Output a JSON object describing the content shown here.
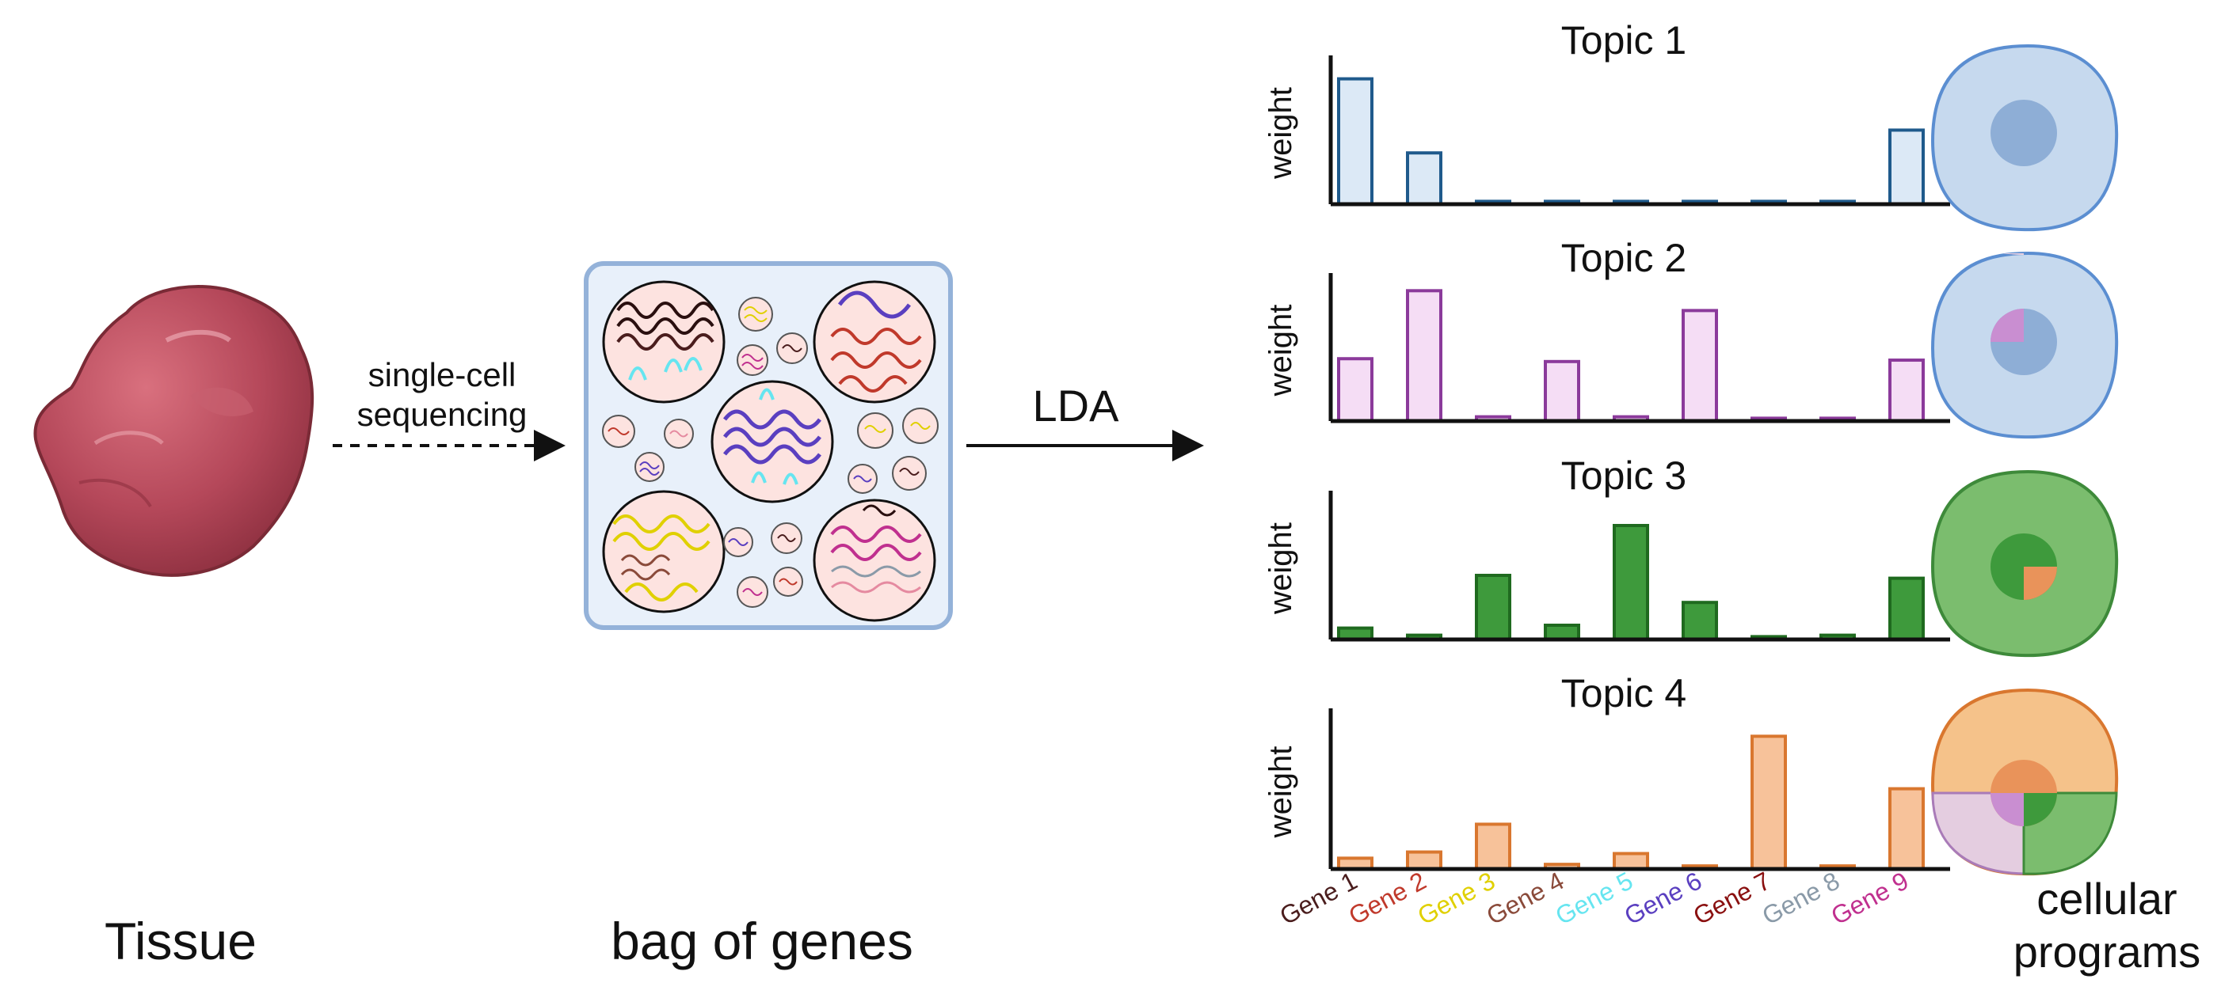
{
  "labels": {
    "tissue": "Tissue",
    "sequencing_line1": "single-cell",
    "sequencing_line2": "sequencing",
    "bag_of_genes": "bag of genes",
    "lda": "LDA",
    "cellular_line1": "cellular",
    "cellular_line2": "programs"
  },
  "genes": [
    {
      "name": "Gene 1",
      "color": "#4a1d1d"
    },
    {
      "name": "Gene 2",
      "color": "#c0392b"
    },
    {
      "name": "Gene 3",
      "color": "#e0d000"
    },
    {
      "name": "Gene 4",
      "color": "#8a4a3a"
    },
    {
      "name": "Gene 5",
      "color": "#66e5f0"
    },
    {
      "name": "Gene 6",
      "color": "#5a3fc0"
    },
    {
      "name": "Gene 7",
      "color": "#8a1010"
    },
    {
      "name": "Gene 8",
      "color": "#8a9aa8"
    },
    {
      "name": "Gene 9",
      "color": "#c0308f"
    }
  ],
  "colors": {
    "tissue_fill": "#b5485a",
    "bag_fill": "#e8f0fa",
    "bag_stroke": "#94b2d9",
    "topic1_fill": "#dce9f6",
    "topic1_stroke": "#1f5a8c",
    "topic2_fill": "#f5ddf5",
    "topic2_stroke": "#8b3a9b",
    "topic3_fill": "#3e9a3c",
    "topic3_stroke": "#1f6a1f",
    "topic4_fill": "#f7c29a",
    "topic4_stroke": "#d9772f"
  },
  "chart_data": [
    {
      "type": "bar",
      "title": "Topic 1",
      "ylabel": "weight",
      "categories": [
        "Gene 1",
        "Gene 2",
        "Gene 3",
        "Gene 4",
        "Gene 5",
        "Gene 6",
        "Gene 7",
        "Gene 8",
        "Gene 9"
      ],
      "values": [
        0.88,
        0.36,
        0.02,
        0.02,
        0.02,
        0.02,
        0.02,
        0.02,
        0.52
      ],
      "ylim": [
        0,
        1
      ]
    },
    {
      "type": "bar",
      "title": "Topic 2",
      "ylabel": "weight",
      "categories": [
        "Gene 1",
        "Gene 2",
        "Gene 3",
        "Gene 4",
        "Gene 5",
        "Gene 6",
        "Gene 7",
        "Gene 8",
        "Gene 9"
      ],
      "values": [
        0.44,
        0.92,
        0.03,
        0.42,
        0.03,
        0.78,
        0.02,
        0.02,
        0.43
      ],
      "ylim": [
        0,
        1
      ]
    },
    {
      "type": "bar",
      "title": "Topic 3",
      "ylabel": "weight",
      "categories": [
        "Gene 1",
        "Gene 2",
        "Gene 3",
        "Gene 4",
        "Gene 5",
        "Gene 6",
        "Gene 7",
        "Gene 8",
        "Gene 9"
      ],
      "values": [
        0.08,
        0.03,
        0.45,
        0.1,
        0.8,
        0.26,
        0.02,
        0.03,
        0.43
      ],
      "ylim": [
        0,
        1
      ]
    },
    {
      "type": "bar",
      "title": "Topic 4",
      "ylabel": "weight",
      "categories": [
        "Gene 1",
        "Gene 2",
        "Gene 3",
        "Gene 4",
        "Gene 5",
        "Gene 6",
        "Gene 7",
        "Gene 8",
        "Gene 9"
      ],
      "values": [
        0.07,
        0.11,
        0.29,
        0.03,
        0.1,
        0.02,
        0.86,
        0.02,
        0.52
      ],
      "ylim": [
        0,
        1
      ]
    }
  ]
}
